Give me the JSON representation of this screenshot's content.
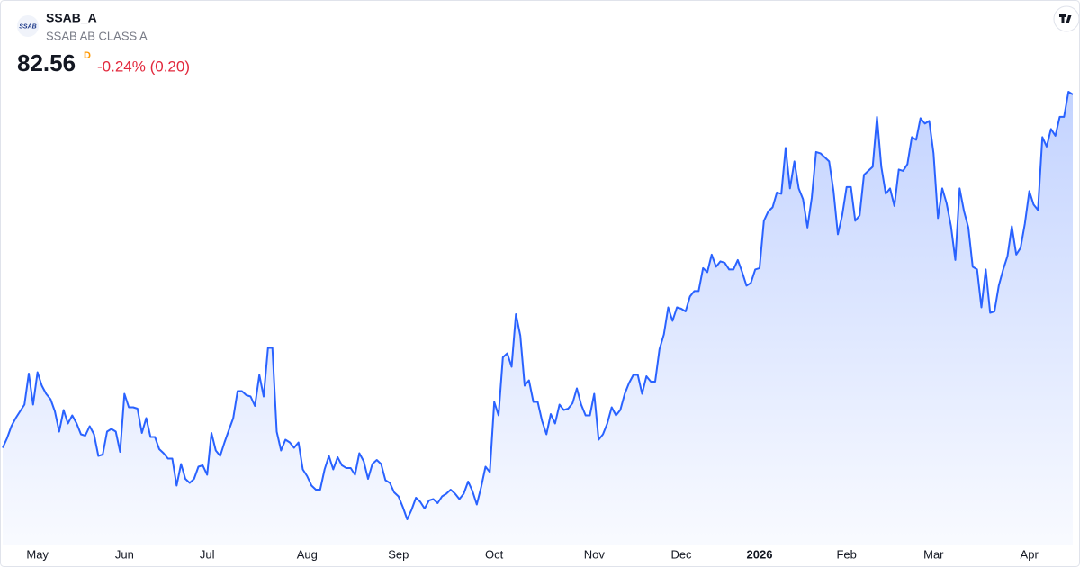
{
  "chart_data": {
    "type": "area",
    "logo_text": "SSAB",
    "title": "SSAB_A",
    "subtitle": "SSAB AB CLASS A",
    "last_value": 82.56,
    "interval": "D",
    "change_label": "-0.24% (0.20)",
    "xticks": [
      {
        "value": 8,
        "label": "May"
      },
      {
        "value": 28,
        "label": "Jun"
      },
      {
        "value": 47,
        "label": "Jul"
      },
      {
        "value": 70,
        "label": "Aug"
      },
      {
        "value": 91,
        "label": "Sep"
      },
      {
        "value": 113,
        "label": "Oct"
      },
      {
        "value": 136,
        "label": "Nov"
      },
      {
        "value": 156,
        "label": "Dec"
      },
      {
        "value": 174,
        "label": "2026",
        "bold": true
      },
      {
        "value": 194,
        "label": "Feb"
      },
      {
        "value": 214,
        "label": "Mar"
      },
      {
        "value": 236,
        "label": "Apr"
      }
    ],
    "series": [
      {
        "name": "SSAB_A",
        "color": "#2962ff",
        "values": [
          56.4,
          57.1,
          58.0,
          58.6,
          59.1,
          59.6,
          61.9,
          59.6,
          62.0,
          61.0,
          60.4,
          60.0,
          59.1,
          57.6,
          59.2,
          58.2,
          58.8,
          58.2,
          57.4,
          57.3,
          58.0,
          57.4,
          55.8,
          55.9,
          57.6,
          57.8,
          57.6,
          56.1,
          60.4,
          59.4,
          59.4,
          59.3,
          57.5,
          58.6,
          57.2,
          57.2,
          56.3,
          56.0,
          55.6,
          55.6,
          53.6,
          55.2,
          54.1,
          53.8,
          54.1,
          55.0,
          55.1,
          54.4,
          57.5,
          56.2,
          55.8,
          56.8,
          57.7,
          58.6,
          60.6,
          60.6,
          60.3,
          60.2,
          59.5,
          61.8,
          60.2,
          63.8,
          63.8,
          57.6,
          56.2,
          57.0,
          56.8,
          56.4,
          56.8,
          54.8,
          54.3,
          53.6,
          53.3,
          53.3,
          54.8,
          55.8,
          54.8,
          55.7,
          55.1,
          54.9,
          54.9,
          54.4,
          56.0,
          55.4,
          54.1,
          55.2,
          55.5,
          55.2,
          54.0,
          53.8,
          53.1,
          52.8,
          52.0,
          51.1,
          51.8,
          52.7,
          52.4,
          51.9,
          52.5,
          52.6,
          52.3,
          52.8,
          53.0,
          53.3,
          53.0,
          52.6,
          53.0,
          53.9,
          53.2,
          52.2,
          53.5,
          55.0,
          54.6,
          59.8,
          58.8,
          63.1,
          63.4,
          62.4,
          66.3,
          64.7,
          61.0,
          61.4,
          59.8,
          59.8,
          58.4,
          57.4,
          58.9,
          58.2,
          59.6,
          59.2,
          59.3,
          59.7,
          60.8,
          59.6,
          58.8,
          58.8,
          60.4,
          57.0,
          57.4,
          58.2,
          59.4,
          58.8,
          59.2,
          60.4,
          61.2,
          61.8,
          61.8,
          60.4,
          61.7,
          61.3,
          61.3,
          63.7,
          64.8,
          66.8,
          65.8,
          66.8,
          66.7,
          66.5,
          67.6,
          68.0,
          68.0,
          69.7,
          69.4,
          70.7,
          69.8,
          70.2,
          70.1,
          69.6,
          69.6,
          70.3,
          69.4,
          68.4,
          68.6,
          69.6,
          69.7,
          73.2,
          73.9,
          74.2,
          75.3,
          75.2,
          78.6,
          75.6,
          77.6,
          75.6,
          74.8,
          72.7,
          74.9,
          78.3,
          78.2,
          77.9,
          77.6,
          75.4,
          72.2,
          73.6,
          75.7,
          75.7,
          73.2,
          73.6,
          76.6,
          76.9,
          77.2,
          80.9,
          77.2,
          75.2,
          75.6,
          74.3,
          77.0,
          76.9,
          77.4,
          79.4,
          79.2,
          80.8,
          80.4,
          80.6,
          78.2,
          73.4,
          75.6,
          74.5,
          72.8,
          70.3,
          75.6,
          73.9,
          72.7,
          69.8,
          69.6,
          66.8,
          69.6,
          66.4,
          66.5,
          68.4,
          69.6,
          70.6,
          72.8,
          70.7,
          71.2,
          73.0,
          75.4,
          74.4,
          74.0,
          79.4,
          78.7,
          80.0,
          79.5,
          80.9,
          80.9,
          82.76,
          82.56
        ]
      }
    ]
  }
}
